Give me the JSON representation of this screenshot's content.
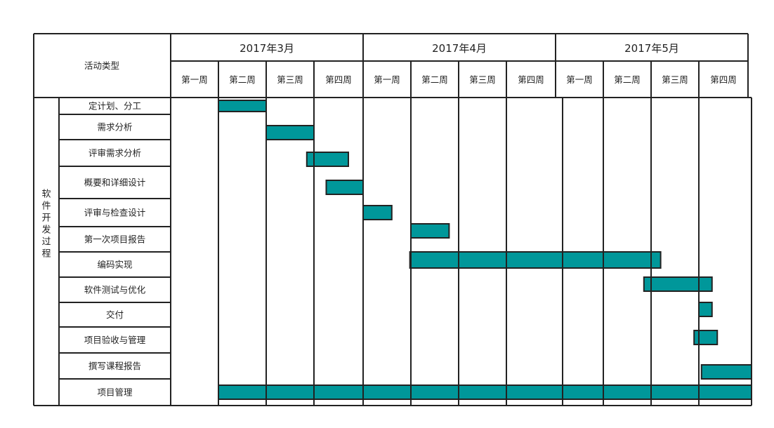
{
  "header_label": "活动类型",
  "group_label": "软件开发过程",
  "colors": {
    "bar": "#00979a",
    "line": "#222222"
  },
  "months": [
    "2017年3月",
    "2017年4月",
    "2017年5月"
  ],
  "weeks": [
    "第一周",
    "第二周",
    "第三周",
    "第四周",
    "第一周",
    "第二周",
    "第三周",
    "第四周",
    "第一周",
    "第二周",
    "第三周",
    "第四周"
  ],
  "tasks": [
    {
      "name": "定计划、分工",
      "start": 1.0,
      "end": 2.0
    },
    {
      "name": "需求分析",
      "start": 2.0,
      "end": 3.0
    },
    {
      "name": "评审需求分析",
      "start": 2.85,
      "end": 3.7
    },
    {
      "name": "概要和详细设计",
      "start": 3.25,
      "end": 4.0
    },
    {
      "name": "评审与检查设计",
      "start": 4.0,
      "end": 4.6
    },
    {
      "name": "第一次项目报告",
      "start": 5.0,
      "end": 5.8
    },
    {
      "name": "编码实现",
      "start": 4.98,
      "end": 10.2
    },
    {
      "name": "软件测试与优化",
      "start": 9.85,
      "end": 11.25
    },
    {
      "name": "交付",
      "start": 11.0,
      "end": 11.25
    },
    {
      "name": "项目验收与管理",
      "start": 10.9,
      "end": 11.35
    },
    {
      "name": "撰写课程报告",
      "start": 11.05,
      "end": 12.0
    },
    {
      "name": "项目管理",
      "start": 1.0,
      "end": 12.0
    }
  ]
}
